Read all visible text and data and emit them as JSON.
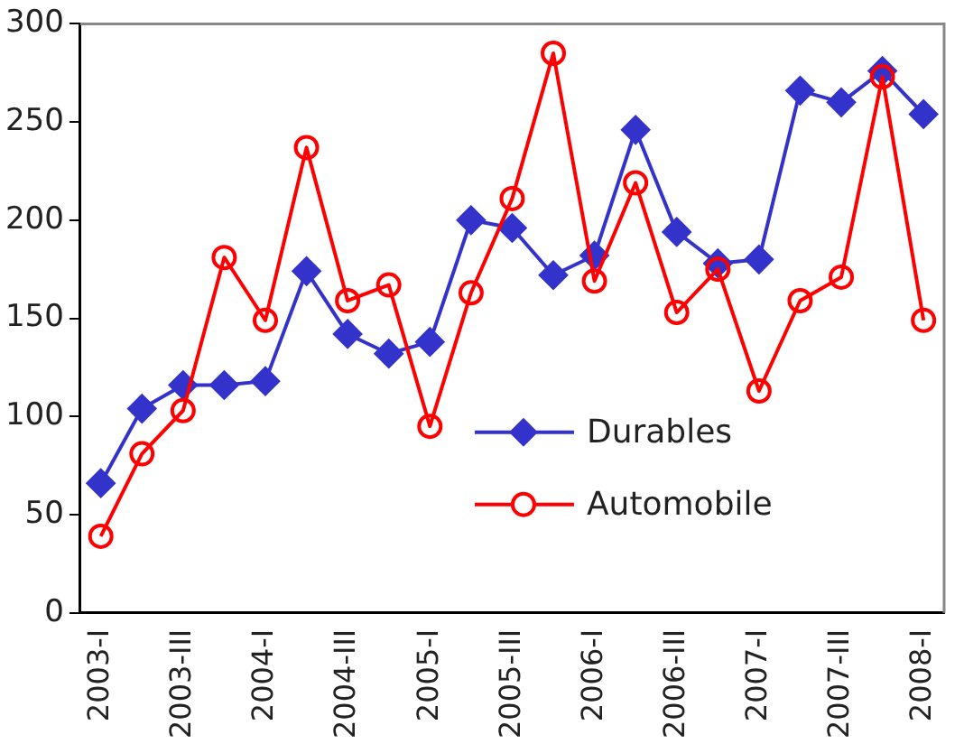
{
  "chart_data": {
    "type": "line",
    "categories": [
      "2003-I",
      null,
      "2003-III",
      null,
      "2004-I",
      null,
      "2004-III",
      null,
      "2005-I",
      null,
      "2005-III",
      null,
      "2006-I",
      null,
      "2006-III",
      null,
      "2007-I",
      null,
      "2007-III",
      null,
      "2008-I"
    ],
    "series": [
      {
        "name": "Durables",
        "color": "#3333cc",
        "marker": "diamond",
        "values": [
          66,
          104,
          116,
          116,
          118,
          174,
          142,
          132,
          138,
          200,
          196,
          172,
          182,
          246,
          194,
          178,
          180,
          266,
          260,
          276,
          254
        ]
      },
      {
        "name": "Automobile",
        "color": "#ff0000",
        "marker": "circle",
        "values": [
          39,
          81,
          103,
          181,
          149,
          237,
          159,
          167,
          95,
          163,
          211,
          285,
          169,
          219,
          153,
          175,
          113,
          159,
          171,
          273,
          149
        ]
      }
    ],
    "ylim": [
      0,
      300
    ],
    "yticks": [
      0,
      50,
      100,
      150,
      200,
      250,
      300
    ],
    "grid": false,
    "legend": "bottom right",
    "line_style": "solid"
  }
}
